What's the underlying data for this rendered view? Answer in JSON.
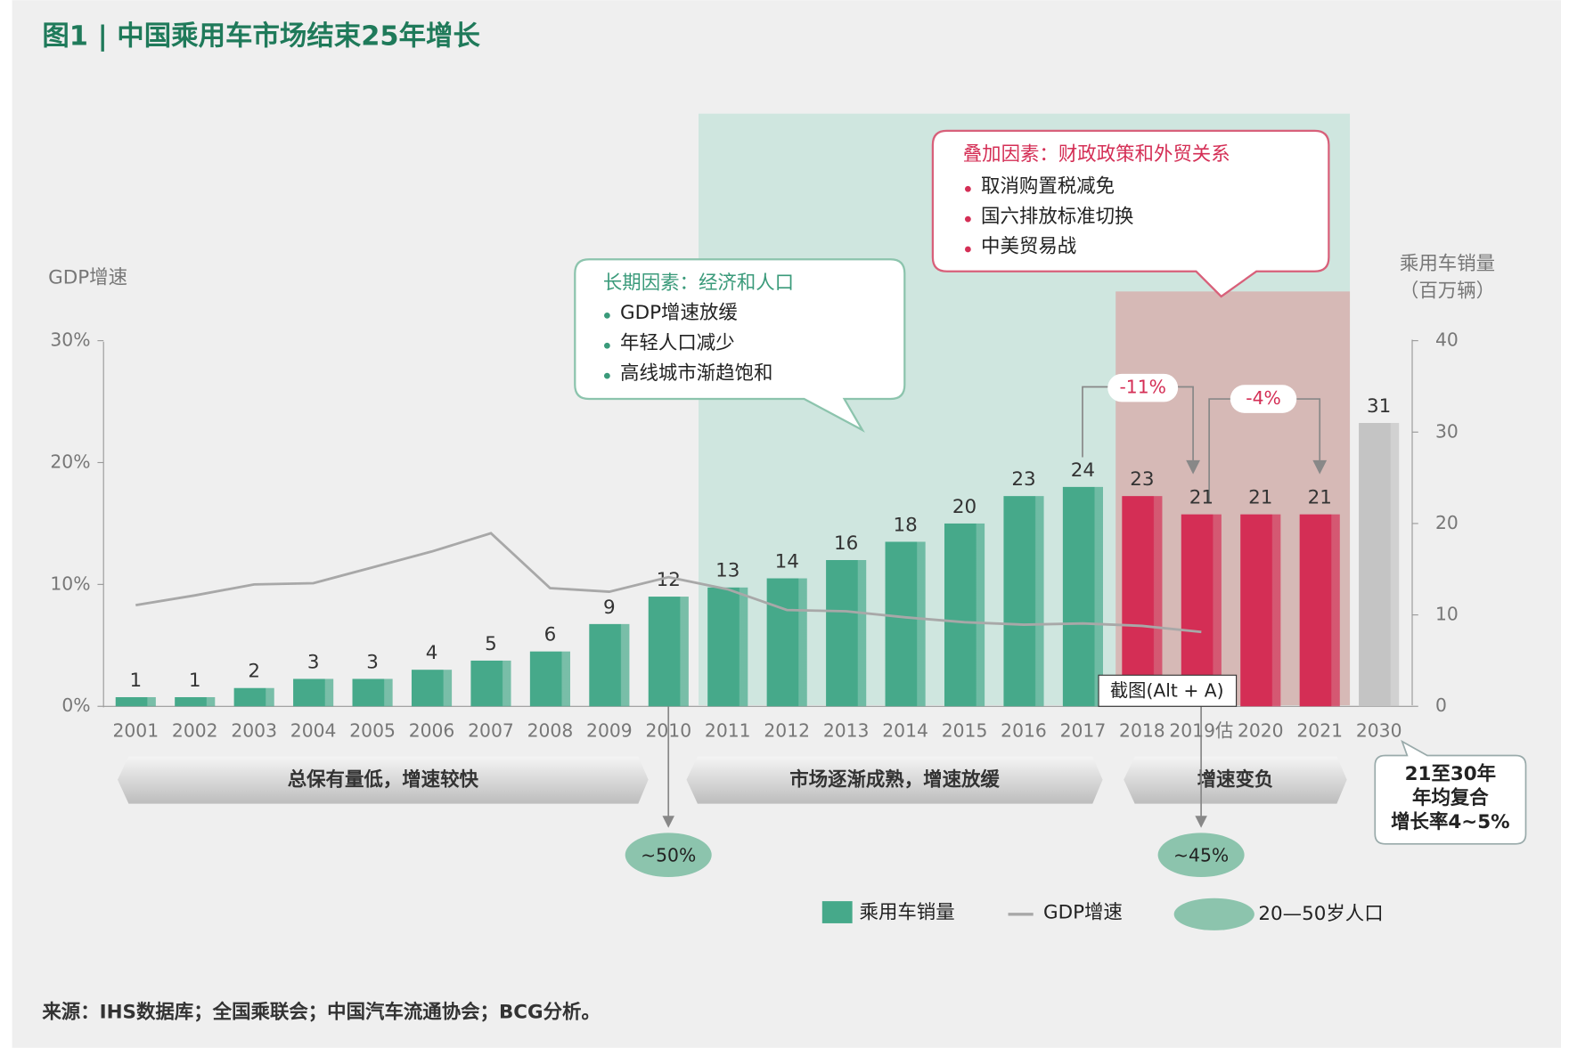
{
  "title": "图1 | 中国乘用车市场结束25年增长",
  "source": "来源：IHS数据库；全国乘联会；中国汽车流通协会；BCG分析。",
  "chart_data": {
    "type": "bar",
    "categories": [
      "2001",
      "2002",
      "2003",
      "2004",
      "2005",
      "2006",
      "2007",
      "2008",
      "2009",
      "2010",
      "2011",
      "2012",
      "2013",
      "2014",
      "2015",
      "2016",
      "2017",
      "2018",
      "2019估",
      "2020",
      "2021",
      "2030"
    ],
    "series": [
      {
        "name": "乘用车销量",
        "color": "#46a98a",
        "axis": "y2",
        "values": [
          1,
          1,
          2,
          3,
          3,
          4,
          5,
          6,
          9,
          12,
          13,
          14,
          16,
          18,
          20,
          23,
          24,
          23,
          21,
          21,
          21,
          31
        ],
        "bar_colors": [
          "#46a98a",
          "#46a98a",
          "#46a98a",
          "#46a98a",
          "#46a98a",
          "#46a98a",
          "#46a98a",
          "#46a98a",
          "#46a98a",
          "#46a98a",
          "#46a98a",
          "#46a98a",
          "#46a98a",
          "#46a98a",
          "#46a98a",
          "#46a98a",
          "#46a98a",
          "#d42e55",
          "#d42e55",
          "#d42e55",
          "#d42e55",
          "#c4c4c4"
        ]
      },
      {
        "name": "GDP增速",
        "type": "line",
        "color": "#a8a8a8",
        "values": [
          8.3,
          9.1,
          10.0,
          10.1,
          11.4,
          12.7,
          14.2,
          9.7,
          9.4,
          10.6,
          9.6,
          7.9,
          7.8,
          7.3,
          6.9,
          6.7,
          6.8,
          6.6,
          6.1,
          null,
          null,
          null
        ]
      }
    ],
    "ylim": [
      0,
      30
    ],
    "yticks": [
      {
        "value": 0,
        "label": "0%"
      },
      {
        "value": 10,
        "label": "10%"
      },
      {
        "value": 20,
        "label": "20%"
      },
      {
        "value": 30,
        "label": "30%"
      }
    ],
    "y2lim": [
      0,
      40
    ],
    "y2ticks": [
      0,
      10,
      20,
      30,
      40
    ],
    "ylabel": "GDP增速",
    "y2label": [
      "乘用车销量",
      "（百万辆）"
    ],
    "long_term": {
      "title": "长期因素：经济和人口",
      "items": [
        "GDP增速放缓",
        "年轻人口减少",
        "高线城市渐趋饱和"
      ]
    },
    "overlay": {
      "title": "叠加因素：财政政策和外贸关系",
      "items": [
        "取消购置税减免",
        "国六排放标准切换",
        "中美贸易战"
      ]
    },
    "changes": [
      "-11%",
      "-4%"
    ],
    "phases": [
      "总保有量低，增速较快",
      "市场逐渐成熟，增速放缓",
      "增速变负"
    ],
    "population": {
      "name": "20—50岁人口",
      "color": "#8cc4ad",
      "labels": [
        "~50%",
        "~45%"
      ]
    },
    "cagr": [
      "21至30年",
      "年均复合",
      "增长率4~5%"
    ],
    "tooltip": "截图(Alt + A)"
  }
}
